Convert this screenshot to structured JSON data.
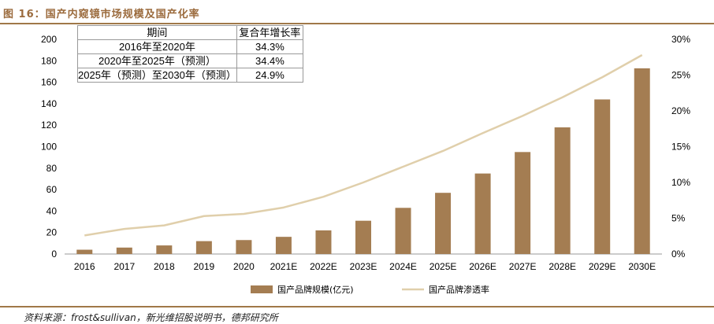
{
  "figure_title": "图 16：国产内窥镜市场规模及国产化率",
  "source": "资料来源：frost&sullivan，新光维招股说明书，德邦研究所",
  "cagr_table": {
    "header": [
      "期间",
      "复合年增长率"
    ],
    "rows": [
      [
        "2016年至2020年",
        "34.3%"
      ],
      [
        "2020年至2025年（预测）",
        "34.4%"
      ],
      [
        "2025年（预测）至2030年（预测）",
        "24.9%"
      ]
    ]
  },
  "chart_data": {
    "type": "bar+line",
    "categories": [
      "2016",
      "2017",
      "2018",
      "2019",
      "2020",
      "2021E",
      "2022E",
      "2023E",
      "2024E",
      "2025E",
      "2026E",
      "2027E",
      "2028E",
      "2029E",
      "2030E"
    ],
    "series": [
      {
        "name": "国产品牌规模(亿元)",
        "type": "bar",
        "axis": "left",
        "color": "#a47d52",
        "values": [
          4,
          6,
          8,
          12,
          13,
          16,
          22,
          31,
          43,
          57,
          75,
          95,
          118,
          144,
          173
        ]
      },
      {
        "name": "国产品牌渗透率",
        "type": "line",
        "axis": "right",
        "color": "#e0cfab",
        "values": [
          2.6,
          3.5,
          4.0,
          5.3,
          5.6,
          6.5,
          8.0,
          10.0,
          12.2,
          14.4,
          16.9,
          19.3,
          21.9,
          24.7,
          27.8
        ]
      }
    ],
    "y_left": {
      "min": 0,
      "max": 200,
      "ticks": [
        0,
        20,
        40,
        60,
        80,
        100,
        120,
        140,
        160,
        180,
        200
      ]
    },
    "y_right": {
      "min": 0,
      "max": 30,
      "ticks": [
        "0%",
        "5%",
        "10%",
        "15%",
        "20%",
        "25%",
        "30%"
      ]
    },
    "legend": {
      "position": "bottom-center",
      "items": [
        "国产品牌规模(亿元)",
        "国产品牌渗透率"
      ]
    }
  }
}
